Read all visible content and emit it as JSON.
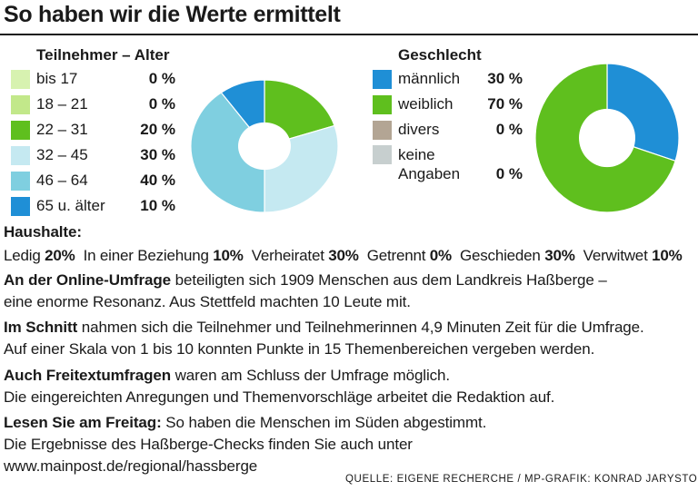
{
  "title": "So haben wir die Werte ermittelt",
  "colors": {
    "bis17": "#d7f2b0",
    "r18_21": "#c2e88a",
    "r22_31": "#5fbf1e",
    "r32_45": "#c5e9f1",
    "r46_64": "#7fcfe0",
    "r65": "#1f8fd6",
    "maennlich": "#1f8fd6",
    "weiblich": "#5fbf1e",
    "divers": "#b3a594",
    "keine": "#c7cfcf"
  },
  "age": {
    "heading": "Teilnehmer – Alter",
    "items": [
      {
        "label": "bis 17",
        "value": "0 %",
        "color": "bis17"
      },
      {
        "label": "18 – 21",
        "value": "0 %",
        "color": "r18_21"
      },
      {
        "label": "22 – 31",
        "value": "20 %",
        "color": "r22_31"
      },
      {
        "label": "32 – 45",
        "value": "30 %",
        "color": "r32_45"
      },
      {
        "label": "46 – 64",
        "value": "40 %",
        "color": "r46_64"
      },
      {
        "label": "65 u. älter",
        "value": "10 %",
        "color": "r65"
      }
    ]
  },
  "gender": {
    "heading": "Geschlecht",
    "items": [
      {
        "label": "männlich",
        "value": "30 %",
        "color": "maennlich"
      },
      {
        "label": "weiblich",
        "value": "70 %",
        "color": "weiblich"
      },
      {
        "label": "divers",
        "value": "0 %",
        "color": "divers"
      },
      {
        "label_line1": "keine",
        "label_line2": "Angaben",
        "value": "0 %",
        "color": "keine"
      }
    ]
  },
  "chart_data": [
    {
      "type": "pie",
      "title": "Teilnehmer – Alter",
      "categories": [
        "bis 17",
        "18 – 21",
        "22 – 31",
        "32 – 45",
        "46 – 64",
        "65 u. älter"
      ],
      "values": [
        0,
        0,
        20,
        30,
        40,
        10
      ],
      "unit": "%",
      "donut": true
    },
    {
      "type": "pie",
      "title": "Geschlecht",
      "categories": [
        "männlich",
        "weiblich",
        "divers",
        "keine Angaben"
      ],
      "values": [
        30,
        70,
        0,
        0
      ],
      "unit": "%",
      "donut": true
    }
  ],
  "households": {
    "heading": "Haushalte:",
    "items": [
      {
        "label": "Ledig",
        "value": "20%"
      },
      {
        "label": "In einer Beziehung",
        "value": "10%"
      },
      {
        "label": "Verheiratet",
        "value": "30%"
      },
      {
        "label": "Getrennt",
        "value": "0%"
      },
      {
        "label": "Geschieden",
        "value": "30%"
      },
      {
        "label": "Verwitwet",
        "value": "10%"
      }
    ]
  },
  "paragraphs": {
    "p1_bold": "An der Online-Umfrage",
    "p1_rest": " beteiligten sich 1909 Menschen aus dem Landkreis Haßberge –",
    "p1_line2": "eine enorme Resonanz. Aus Stettfeld machten 10 Leute mit.",
    "p2_bold": "Im Schnitt",
    "p2_rest": " nahmen sich die Teilnehmer und Teilnehmerinnen 4,9 Minuten Zeit für die Umfrage.",
    "p2_line2": "Auf einer Skala von 1 bis 10 konnten Punkte in 15 Themenbereichen vergeben werden.",
    "p3_bold": "Auch Freitextumfragen",
    "p3_rest": " waren am Schluss der Umfrage möglich.",
    "p3_line2": "Die eingereichten Anregungen und Themenvorschläge arbeitet die Redaktion auf.",
    "p4_bold": "Lesen Sie am Freitag:",
    "p4_rest": " So haben die Menschen im Süden abgestimmt.",
    "p4_line2": "Die Ergebnisse des Haßberge-Checks finden Sie auch unter",
    "p4_line3": "www.mainpost.de/regional/hassberge"
  },
  "source": "QUELLE: EIGENE RECHERCHE / MP-GRAFIK: KONRAD JARYSTO"
}
